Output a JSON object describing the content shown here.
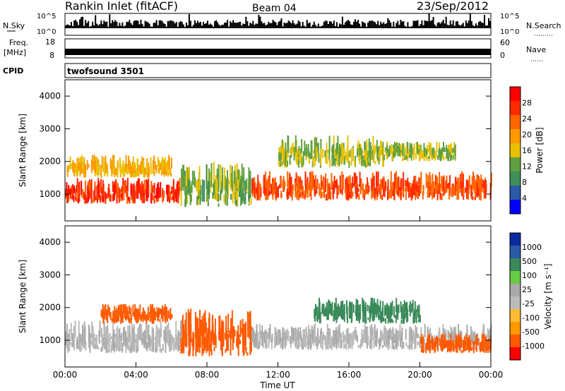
{
  "header": {
    "station": "Rankin Inlet (fitACF)",
    "beam": "Beam 04",
    "date": "23/Sep/2012"
  },
  "aux_panels": {
    "nsky": {
      "label": "N.Sky",
      "ticks": [
        "10^5",
        "10^0"
      ],
      "right_label": "N.Search",
      "right_ticks": [
        "10^5",
        "10^0"
      ]
    },
    "freq": {
      "label_top": "Freq.",
      "label_bottom": "[MHz]",
      "ticks": [
        "18",
        "8"
      ],
      "right_label": "Nave",
      "right_ticks": [
        "60",
        "0"
      ]
    },
    "cpid": {
      "label": "CPID",
      "program": "twofsound 3501"
    }
  },
  "colors": {
    "power_scale": [
      "#0000ff",
      "#2a5aa8",
      "#3f8f5a",
      "#5fa040",
      "#e8c000",
      "#ff9900",
      "#ff6600",
      "#ff2a00",
      "#ff0000"
    ],
    "velocity_scale": [
      "#ff0000",
      "#ff5a00",
      "#ff9900",
      "#ffbb33",
      "#bbbbbb",
      "#aaaaaa",
      "#66cc44",
      "#3a8a5a",
      "#2a5aa8",
      "#0a2aa0"
    ]
  },
  "chart_data": [
    {
      "type": "heatmap",
      "panel": "power",
      "xlabel": "",
      "ylabel": "Slant Range [km]",
      "xlim": [
        "00:00",
        "24:00"
      ],
      "ylim": [
        180,
        4500
      ],
      "yticks": [
        "1000",
        "2000",
        "3000",
        "4000"
      ],
      "colorbar": {
        "label": "Power [dB]",
        "ticks": [
          "28",
          "24",
          "20",
          "16",
          "12",
          "8",
          "4"
        ]
      },
      "bands": [
        {
          "t0": 0,
          "t1": 6.5,
          "r0": 700,
          "r1": 1500,
          "value": 26
        },
        {
          "t0": 0,
          "t1": 6,
          "r0": 1500,
          "r1": 2200,
          "value": 16
        },
        {
          "t0": 6.5,
          "t1": 10.5,
          "r0": 600,
          "r1": 2000,
          "value": 10
        },
        {
          "t0": 10.5,
          "t1": 24,
          "r0": 800,
          "r1": 1700,
          "value": 24
        },
        {
          "t0": 12,
          "t1": 18,
          "r0": 1800,
          "r1": 2800,
          "value": 12
        },
        {
          "t0": 18,
          "t1": 22,
          "r0": 2000,
          "r1": 2600,
          "value": 12
        }
      ]
    },
    {
      "type": "heatmap",
      "panel": "velocity",
      "xlabel": "Time UT",
      "ylabel": "Slant Range [km]",
      "xlim": [
        "00:00",
        "24:00"
      ],
      "ylim": [
        180,
        4500
      ],
      "yticks": [
        "1000",
        "2000",
        "3000",
        "4000"
      ],
      "xticks": [
        "00:00",
        "04:00",
        "08:00",
        "12:00",
        "16:00",
        "20:00",
        "00:00"
      ],
      "colorbar": {
        "label": "Velocity [m s⁻¹]",
        "ticks": [
          "1000",
          "500",
          "100",
          "25",
          "-25",
          "-100",
          "-500",
          "-1000"
        ]
      },
      "bands": [
        {
          "t0": 0,
          "t1": 6.5,
          "r0": 600,
          "r1": 1600,
          "value": 0
        },
        {
          "t0": 2,
          "t1": 6,
          "r0": 1500,
          "r1": 2100,
          "value": -150
        },
        {
          "t0": 6.5,
          "t1": 10.5,
          "r0": 500,
          "r1": 2000,
          "value": -200
        },
        {
          "t0": 10.5,
          "t1": 24,
          "r0": 700,
          "r1": 1500,
          "value": 0
        },
        {
          "t0": 14,
          "t1": 20,
          "r0": 1500,
          "r1": 2300,
          "value": 120
        },
        {
          "t0": 20,
          "t1": 24,
          "r0": 600,
          "r1": 1200,
          "value": -200
        }
      ]
    }
  ]
}
